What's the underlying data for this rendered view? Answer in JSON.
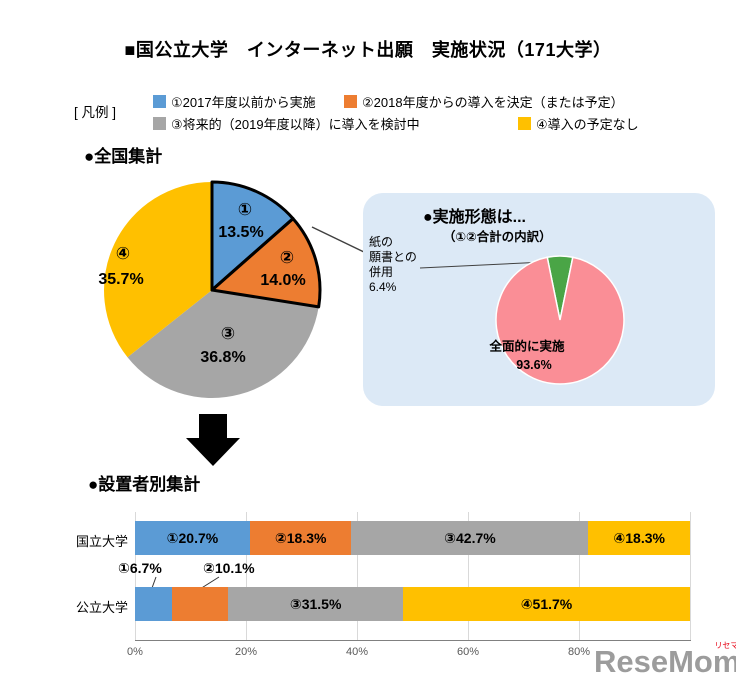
{
  "title": "■国公立大学　インターネット出願　実施状況（171大学）",
  "legend": {
    "label": "[ 凡例 ]",
    "items": [
      {
        "label": "①2017年度以前から実施",
        "color": "#5B9BD5"
      },
      {
        "label": "②2018年度からの導入を決定（または予定）",
        "color": "#ED7D31"
      },
      {
        "label": "③将来的（2019年度以降）に導入を検討中",
        "color": "#A6A6A6"
      },
      {
        "label": "④導入の予定なし",
        "color": "#FFC000"
      }
    ]
  },
  "national": {
    "heading": "●全国集計",
    "slices": [
      {
        "num": "①",
        "pct": "13.5%"
      },
      {
        "num": "②",
        "pct": "14.0%"
      },
      {
        "num": "③",
        "pct": "36.8%"
      },
      {
        "num": "④",
        "pct": "35.7%"
      }
    ]
  },
  "callout": {
    "title": "●実施形態は...",
    "subtitle": "（①②合計の内訳）",
    "paper": {
      "line1": "紙の",
      "line2": "願書との",
      "line3": "併用",
      "pct": "6.4%"
    },
    "full": {
      "label": "全面的に実施",
      "pct": "93.6%"
    }
  },
  "by_founder": {
    "heading": "●設置者別集計",
    "rows": [
      {
        "label": "国立大学",
        "segments": [
          {
            "text": "①20.7%"
          },
          {
            "text": "②18.3%"
          },
          {
            "text": "③42.7%"
          },
          {
            "text": "④18.3%"
          }
        ]
      },
      {
        "label": "公立大学",
        "outside_labels": [
          "①6.7%",
          "②10.1%"
        ],
        "segments": [
          {
            "text": ""
          },
          {
            "text": ""
          },
          {
            "text": "③31.5%"
          },
          {
            "text": "④51.7%"
          }
        ]
      }
    ],
    "axis_ticks": [
      "0%",
      "20%",
      "40%",
      "60%",
      "80%"
    ]
  },
  "watermark": {
    "text": "ReseMom",
    "ruby": "リセマム"
  },
  "colors": {
    "callout_bg": "#DCE9F6",
    "watermark": "#9C9C9C",
    "ruby": "#E60012",
    "grid": "#D9D9D9",
    "axis": "#808080",
    "highlight_outline": "#000000"
  },
  "chart_data": [
    {
      "type": "pie",
      "title": "全国集計",
      "labels": [
        "①2017年度以前から実施",
        "②2018年度からの導入を決定（または予定）",
        "③将来的（2019年度以降）に導入を検討中",
        "④導入の予定なし"
      ],
      "values": [
        13.5,
        14.0,
        36.8,
        35.7
      ],
      "colors": [
        "#5B9BD5",
        "#ED7D31",
        "#A6A6A6",
        "#FFC000"
      ],
      "highlighted_outline": [
        0,
        1
      ],
      "start_angle_deg": 0,
      "direction": "clockwise",
      "unit": "%"
    },
    {
      "type": "pie",
      "title": "実施形態は...（①②合計の内訳）",
      "labels": [
        "紙の願書との併用",
        "全面的に実施"
      ],
      "values": [
        6.4,
        93.6
      ],
      "colors": [
        "#4AA546",
        "#FA8E96"
      ],
      "start_angle_deg": -11.5,
      "direction": "clockwise",
      "unit": "%"
    },
    {
      "type": "bar",
      "stacked": true,
      "orientation": "horizontal",
      "title": "設置者別集計",
      "categories": [
        "国立大学",
        "公立大学"
      ],
      "series": [
        {
          "name": "①2017年度以前から実施",
          "values": [
            20.7,
            6.7
          ],
          "color": "#5B9BD5"
        },
        {
          "name": "②2018年度からの導入を決定（または予定）",
          "values": [
            18.3,
            10.1
          ],
          "color": "#ED7D31"
        },
        {
          "name": "③将来的（2019年度以降）に導入を検討中",
          "values": [
            42.7,
            31.5
          ],
          "color": "#A6A6A6"
        },
        {
          "name": "④導入の予定なし",
          "values": [
            18.3,
            51.7
          ],
          "color": "#FFC000"
        }
      ],
      "xlim": [
        0,
        100
      ],
      "tick_labels": [
        "0%",
        "20%",
        "40%",
        "60%",
        "80%"
      ],
      "grid": true,
      "unit": "%"
    }
  ]
}
